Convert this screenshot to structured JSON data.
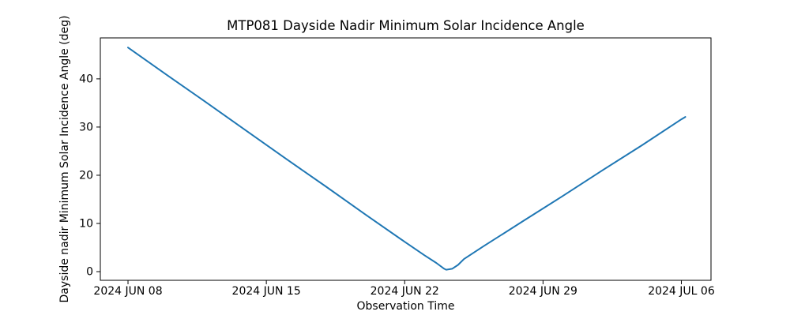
{
  "chart_data": {
    "type": "line",
    "title": "MTP081 Dayside Nadir Minimum Solar Incidence Angle",
    "xlabel": "Observation Time",
    "ylabel": "Dayside nadir Minimum Solar Incidence Angle (deg)",
    "legend": "none",
    "grid": false,
    "line_color": "#1f77b4",
    "axis_color": "#000000",
    "background_color": "#ffffff",
    "x_unit": "days since 2024 JUN 08",
    "xlim": [
      -1.4,
      29.5
    ],
    "ylim": [
      -1.8,
      48.5
    ],
    "x_ticks": [
      {
        "t": 0,
        "label": "2024 JUN 08"
      },
      {
        "t": 7,
        "label": "2024 JUN 15"
      },
      {
        "t": 14,
        "label": "2024 JUN 22"
      },
      {
        "t": 21,
        "label": "2024 JUN 29"
      },
      {
        "t": 28,
        "label": "2024 JUL 06"
      }
    ],
    "y_ticks": [
      0,
      10,
      20,
      30,
      40
    ],
    "series": [
      {
        "name": "dayside-nadir-minimum-solar-incidence-angle",
        "points": [
          {
            "t": 0,
            "v": 46.5
          },
          {
            "t": 2,
            "v": 40.7
          },
          {
            "t": 4,
            "v": 35.0
          },
          {
            "t": 6,
            "v": 29.2
          },
          {
            "t": 8,
            "v": 23.4
          },
          {
            "t": 10,
            "v": 17.7
          },
          {
            "t": 12,
            "v": 11.9
          },
          {
            "t": 14,
            "v": 6.2
          },
          {
            "t": 15,
            "v": 3.4
          },
          {
            "t": 15.6,
            "v": 1.8
          },
          {
            "t": 16.0,
            "v": 0.6
          },
          {
            "t": 16.1,
            "v": 0.4
          },
          {
            "t": 16.4,
            "v": 0.6
          },
          {
            "t": 16.7,
            "v": 1.4
          },
          {
            "t": 17,
            "v": 2.6
          },
          {
            "t": 18,
            "v": 5.3
          },
          {
            "t": 20,
            "v": 10.5
          },
          {
            "t": 22,
            "v": 15.7
          },
          {
            "t": 24,
            "v": 21.0
          },
          {
            "t": 26,
            "v": 26.2
          },
          {
            "t": 28,
            "v": 31.6
          },
          {
            "t": 28.2,
            "v": 32.1
          }
        ]
      }
    ]
  }
}
